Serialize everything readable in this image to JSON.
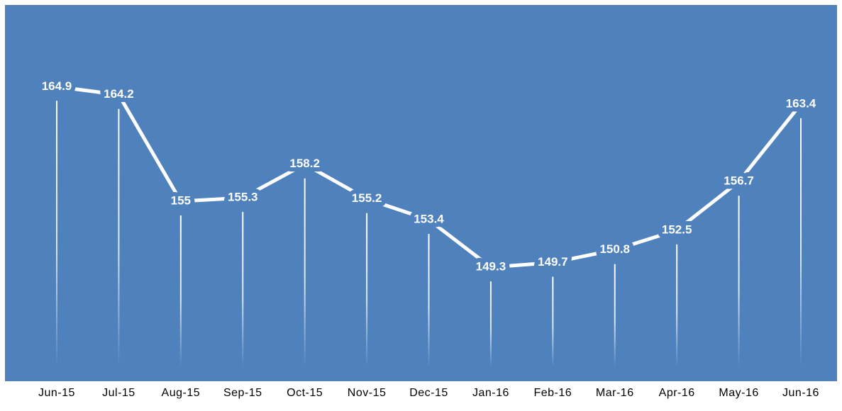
{
  "chart_data": {
    "type": "line",
    "categories": [
      "Jun-15",
      "Jul-15",
      "Aug-15",
      "Sep-15",
      "Oct-15",
      "Nov-15",
      "Dec-15",
      "Jan-16",
      "Feb-16",
      "Mar-16",
      "Apr-16",
      "May-16",
      "Jun-16"
    ],
    "values": [
      164.9,
      164.2,
      155,
      155.3,
      158.2,
      155.2,
      153.4,
      149.3,
      149.7,
      150.8,
      152.5,
      156.7,
      163.4
    ],
    "color": "#ffffff",
    "background": "#4f81bd",
    "ylim": [
      140,
      170
    ],
    "drop_lines": true
  }
}
